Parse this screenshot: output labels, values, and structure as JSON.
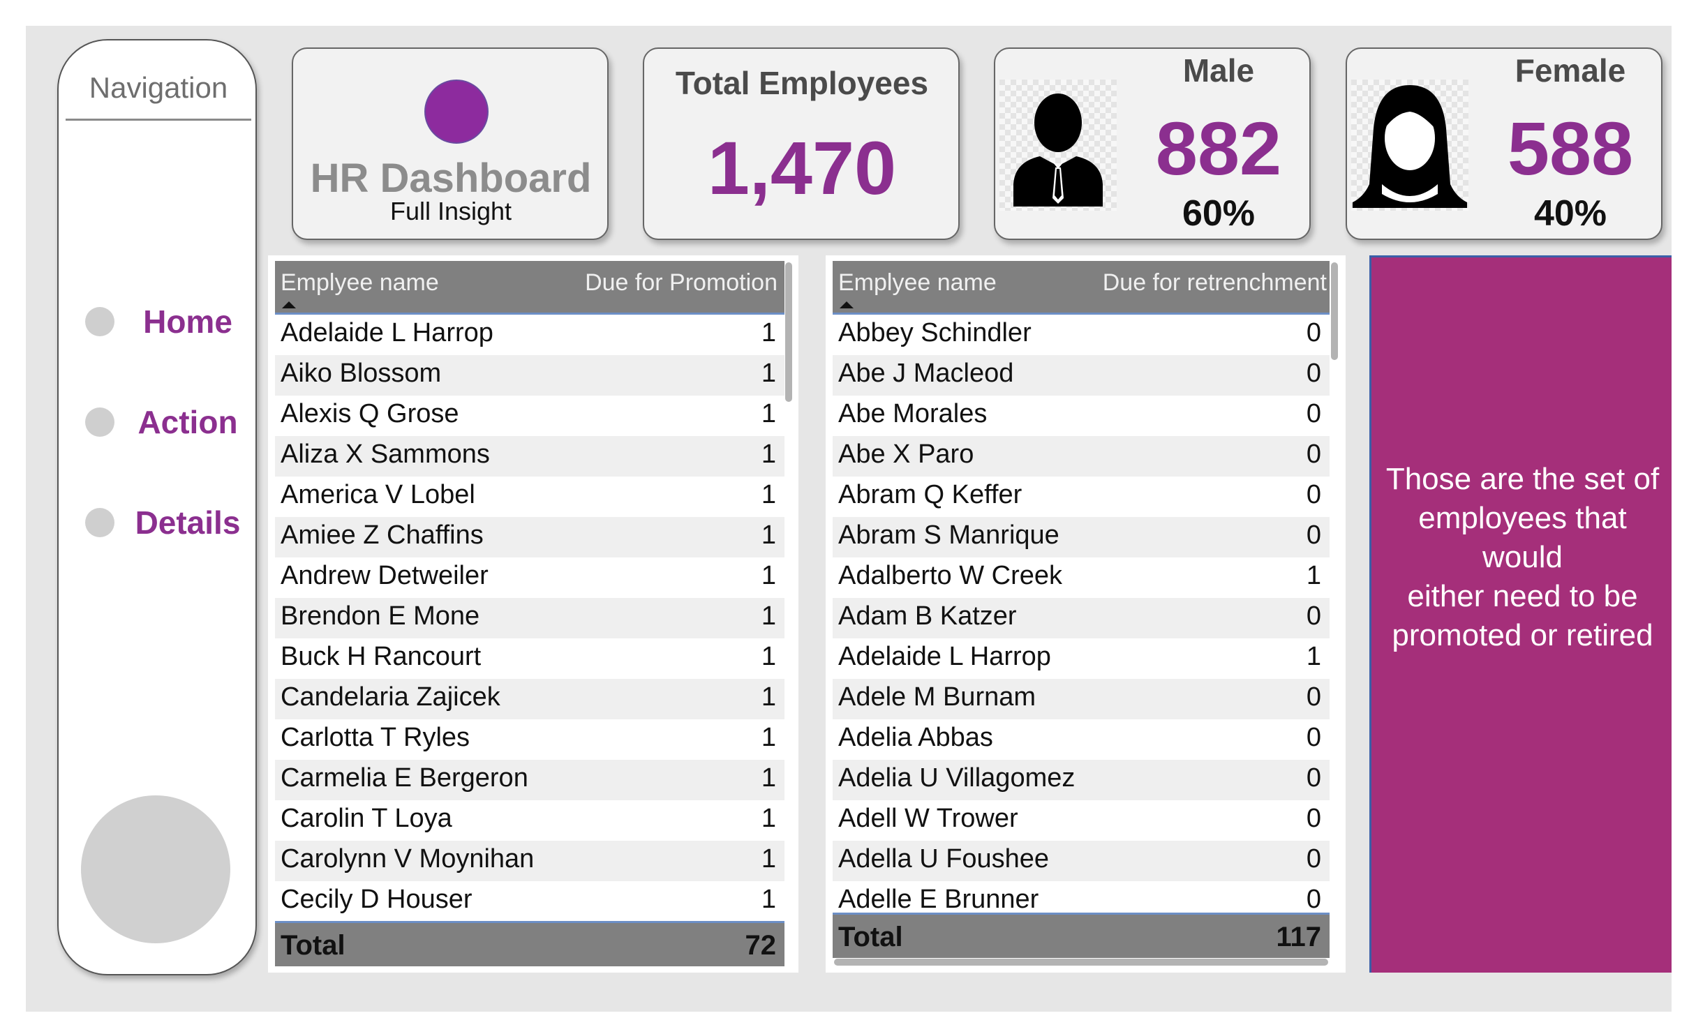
{
  "navigation": {
    "title": "Navigation",
    "items": [
      {
        "label": "Home"
      },
      {
        "label": "Action"
      },
      {
        "label": "Details"
      }
    ]
  },
  "cards": {
    "hr": {
      "title": "HR Dashboard",
      "subtitle": "Full Insight"
    },
    "total": {
      "title": "Total Employees",
      "value": "1,470"
    },
    "male": {
      "title": "Male",
      "value": "882",
      "percent": "60%",
      "icon": "male-avatar-icon"
    },
    "female": {
      "title": "Female",
      "value": "588",
      "percent": "40%",
      "icon": "female-avatar-icon"
    }
  },
  "promotion_table": {
    "columns": [
      "Emplyee name",
      "Due for Promotion"
    ],
    "rows": [
      {
        "name": "Adelaide L Harrop",
        "value": "1"
      },
      {
        "name": "Aiko Blossom",
        "value": "1"
      },
      {
        "name": "Alexis Q Grose",
        "value": "1"
      },
      {
        "name": "Aliza X Sammons",
        "value": "1"
      },
      {
        "name": "America V Lobel",
        "value": "1"
      },
      {
        "name": "Amiee Z Chaffins",
        "value": "1"
      },
      {
        "name": "Andrew Detweiler",
        "value": "1"
      },
      {
        "name": "Brendon E Mone",
        "value": "1"
      },
      {
        "name": "Buck H Rancourt",
        "value": "1"
      },
      {
        "name": "Candelaria Zajicek",
        "value": "1"
      },
      {
        "name": "Carlotta T Ryles",
        "value": "1"
      },
      {
        "name": "Carmelia E Bergeron",
        "value": "1"
      },
      {
        "name": "Carolin T Loya",
        "value": "1"
      },
      {
        "name": "Carolynn V Moynihan",
        "value": "1"
      },
      {
        "name": "Cecily D Houser",
        "value": "1"
      }
    ],
    "total_label": "Total",
    "total_value": "72"
  },
  "retrenchment_table": {
    "columns": [
      "Emplyee name",
      "Due for retrenchment"
    ],
    "rows": [
      {
        "name": "Abbey Schindler",
        "value": "0"
      },
      {
        "name": "Abe J Macleod",
        "value": "0"
      },
      {
        "name": "Abe Morales",
        "value": "0"
      },
      {
        "name": "Abe X Paro",
        "value": "0"
      },
      {
        "name": "Abram Q Keffer",
        "value": "0"
      },
      {
        "name": "Abram S Manrique",
        "value": "0"
      },
      {
        "name": "Adalberto W Creek",
        "value": "1"
      },
      {
        "name": "Adam B Katzer",
        "value": "0"
      },
      {
        "name": "Adelaide L Harrop",
        "value": "1"
      },
      {
        "name": "Adele M Burnam",
        "value": "0"
      },
      {
        "name": "Adelia Abbas",
        "value": "0"
      },
      {
        "name": "Adelia U Villagomez",
        "value": "0"
      },
      {
        "name": "Adell W Trower",
        "value": "0"
      },
      {
        "name": "Adella U Foushee",
        "value": "0"
      },
      {
        "name": "Adelle E Brunner",
        "value": "0"
      }
    ],
    "total_label": "Total",
    "total_value": "117"
  },
  "info_panel": {
    "lines": [
      "Those are the set of",
      "employees that would",
      "either need to be",
      "promoted or retired"
    ]
  },
  "colors": {
    "accent": "#8b2f8f",
    "panel": "#a52f7a",
    "header": "#808080"
  }
}
